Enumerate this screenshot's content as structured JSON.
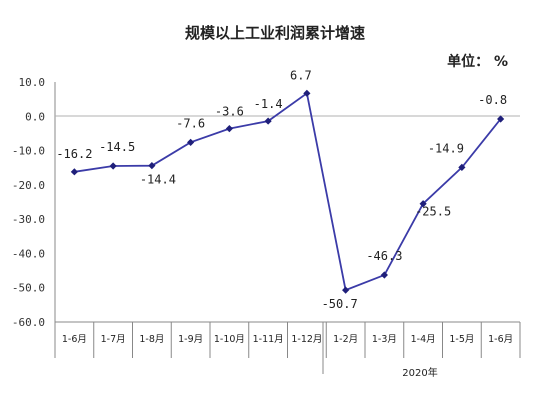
{
  "chart_data": {
    "type": "line",
    "title": "规模以上工业利润累计增速",
    "unit_label": "单位：  %",
    "categories": [
      "1-6月",
      "1-7月",
      "1-8月",
      "1-9月",
      "1-10月",
      "1-11月",
      "1-12月",
      "1-2月",
      "1-3月",
      "1-4月",
      "1-5月",
      "1-6月"
    ],
    "values": [
      -16.2,
      -14.5,
      -14.4,
      -7.6,
      -3.6,
      -1.4,
      6.7,
      -50.7,
      -46.3,
      -25.5,
      -14.9,
      -0.8
    ],
    "data_labels": [
      "-16.2",
      "-14.5",
      "-14.4",
      "-7.6",
      "-3.6",
      "-1.4",
      "6.7",
      "-50.7",
      "-46.3",
      "-25.5",
      "-14.9",
      "-0.8"
    ],
    "yticks": [
      "10.0",
      "0.0",
      "-10.0",
      "-20.0",
      "-30.0",
      "-40.0",
      "-50.0",
      "-60.0"
    ],
    "ylim": [
      -60,
      10
    ],
    "group_label": "2020年",
    "grid": false,
    "colors": {
      "line": "#3b3ba8",
      "marker": "#1f1f7a"
    }
  }
}
